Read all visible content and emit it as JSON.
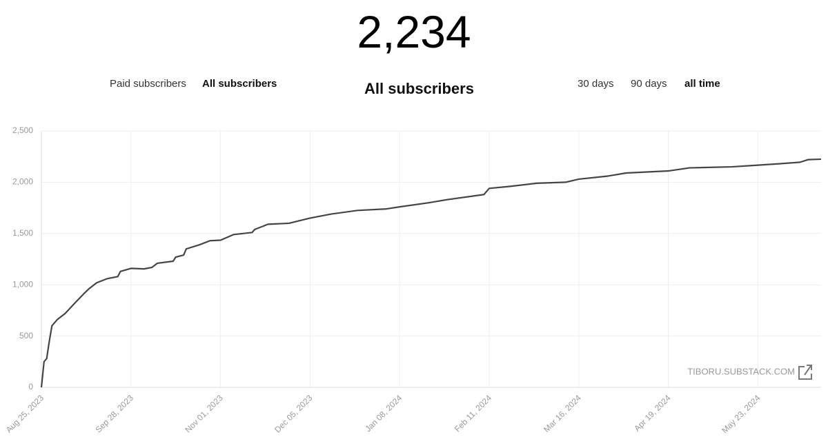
{
  "header": {
    "total": "2,234",
    "heading": "All subscribers"
  },
  "tabs": {
    "audience": [
      "Paid subscribers",
      "All subscribers"
    ],
    "audience_selected": 1,
    "range": [
      "30 days",
      "90 days",
      "all time"
    ],
    "range_selected": 2
  },
  "watermark": "TIBORU.SUBSTACK.COM",
  "chart_data": {
    "type": "line",
    "x": [
      "2023-08-25",
      "2023-08-26",
      "2023-08-27",
      "2023-08-28",
      "2023-08-29",
      "2023-08-31",
      "2023-09-03",
      "2023-09-07",
      "2023-09-10",
      "2023-09-12",
      "2023-09-15",
      "2023-09-19",
      "2023-09-23",
      "2023-09-24",
      "2023-09-28",
      "2023-10-03",
      "2023-10-06",
      "2023-10-08",
      "2023-10-14",
      "2023-10-15",
      "2023-10-18",
      "2023-10-19",
      "2023-10-24",
      "2023-10-28",
      "2023-11-01",
      "2023-11-06",
      "2023-11-13",
      "2023-11-14",
      "2023-11-19",
      "2023-11-27",
      "2023-12-05",
      "2023-12-13",
      "2023-12-23",
      "2024-01-03",
      "2024-01-08",
      "2024-01-19",
      "2024-01-26",
      "2024-02-09",
      "2024-02-11",
      "2024-02-19",
      "2024-02-29",
      "2024-03-11",
      "2024-03-16",
      "2024-03-27",
      "2024-04-03",
      "2024-04-11",
      "2024-04-19",
      "2024-04-27",
      "2024-05-13",
      "2024-05-22",
      "2024-05-31",
      "2024-06-08",
      "2024-06-11",
      "2024-06-16"
    ],
    "series": [
      {
        "name": "All subscribers",
        "color": "#444444",
        "values": [
          0,
          250,
          280,
          450,
          600,
          660,
          720,
          830,
          910,
          960,
          1020,
          1060,
          1080,
          1130,
          1160,
          1155,
          1170,
          1210,
          1230,
          1270,
          1290,
          1350,
          1390,
          1430,
          1435,
          1490,
          1510,
          1540,
          1590,
          1600,
          1650,
          1690,
          1725,
          1740,
          1760,
          1800,
          1830,
          1880,
          1940,
          1960,
          1990,
          2000,
          2030,
          2060,
          2090,
          2100,
          2110,
          2140,
          2150,
          2165,
          2180,
          2195,
          2220,
          2225
        ]
      }
    ],
    "xlim": [
      "2023-08-25",
      "2024-06-16"
    ],
    "xticks": [
      {
        "value": "2023-08-25",
        "label": "Aug 25, 2023"
      },
      {
        "value": "2023-09-28",
        "label": "Sep 28, 2023"
      },
      {
        "value": "2023-11-01",
        "label": "Nov 01, 2023"
      },
      {
        "value": "2023-12-05",
        "label": "Dec 05, 2023"
      },
      {
        "value": "2024-01-08",
        "label": "Jan 08, 2024"
      },
      {
        "value": "2024-02-11",
        "label": "Feb 11, 2024"
      },
      {
        "value": "2024-03-16",
        "label": "Mar 16, 2024"
      },
      {
        "value": "2024-04-19",
        "label": "Apr 19, 2024"
      },
      {
        "value": "2024-05-23",
        "label": "May 23, 2024"
      }
    ],
    "ylim": [
      0,
      2500
    ],
    "yticks": [
      0,
      500,
      {
        "value": 1000,
        "label": "1,000"
      },
      {
        "value": 1500,
        "label": "1,500"
      },
      {
        "value": 2000,
        "label": "2,000"
      },
      {
        "value": 2500,
        "label": "2,500"
      }
    ],
    "grid": true
  }
}
